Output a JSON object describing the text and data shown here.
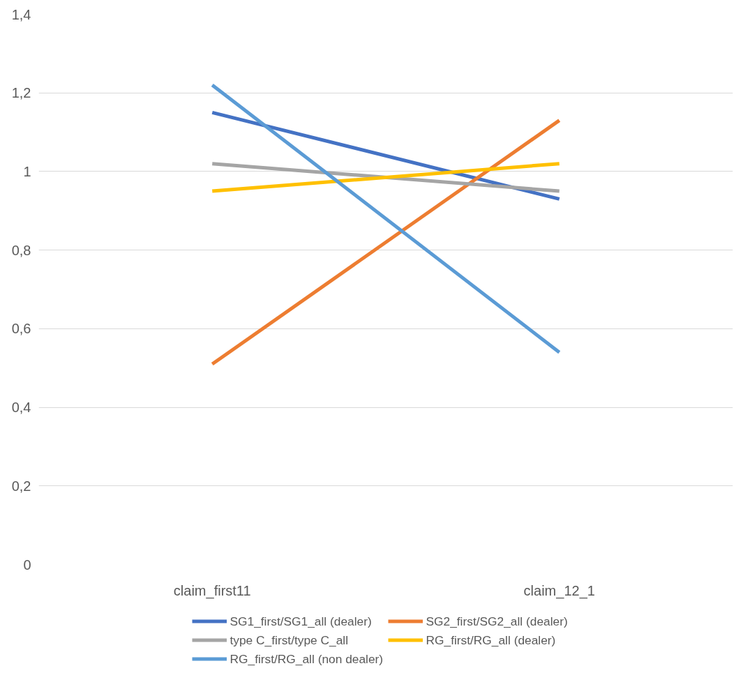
{
  "chart_data": {
    "type": "line",
    "categories": [
      "claim_first11",
      "claim_12_1"
    ],
    "series": [
      {
        "name": "SG1_first/SG1_all (dealer)",
        "color": "#4472c4",
        "values": [
          1.15,
          0.93
        ]
      },
      {
        "name": "SG2_first/SG2_all (dealer)",
        "color": "#ed7d31",
        "values": [
          0.51,
          1.13
        ]
      },
      {
        "name": "type C_first/type C_all",
        "color": "#a5a5a5",
        "values": [
          1.02,
          0.95
        ]
      },
      {
        "name": "RG_first/RG_all (dealer)",
        "color": "#ffc000",
        "values": [
          0.95,
          1.02
        ]
      },
      {
        "name": "RG_first/RG_all (non dealer)",
        "color": "#5b9bd5",
        "values": [
          1.22,
          0.54
        ]
      }
    ],
    "ylim": [
      0,
      1.4
    ],
    "yticks": [
      0,
      {
        "value": 0.2,
        "label": "0,2"
      },
      {
        "value": 0.4,
        "label": "0,4"
      },
      {
        "value": 0.6,
        "label": "0,6"
      },
      {
        "value": 0.8,
        "label": "0,8"
      },
      1,
      {
        "value": 1.2,
        "label": "1,2"
      },
      {
        "value": 1.4,
        "label": "1,4"
      }
    ],
    "grid": "y",
    "legend": "bottom",
    "marker": "none",
    "line_style": "solid"
  }
}
